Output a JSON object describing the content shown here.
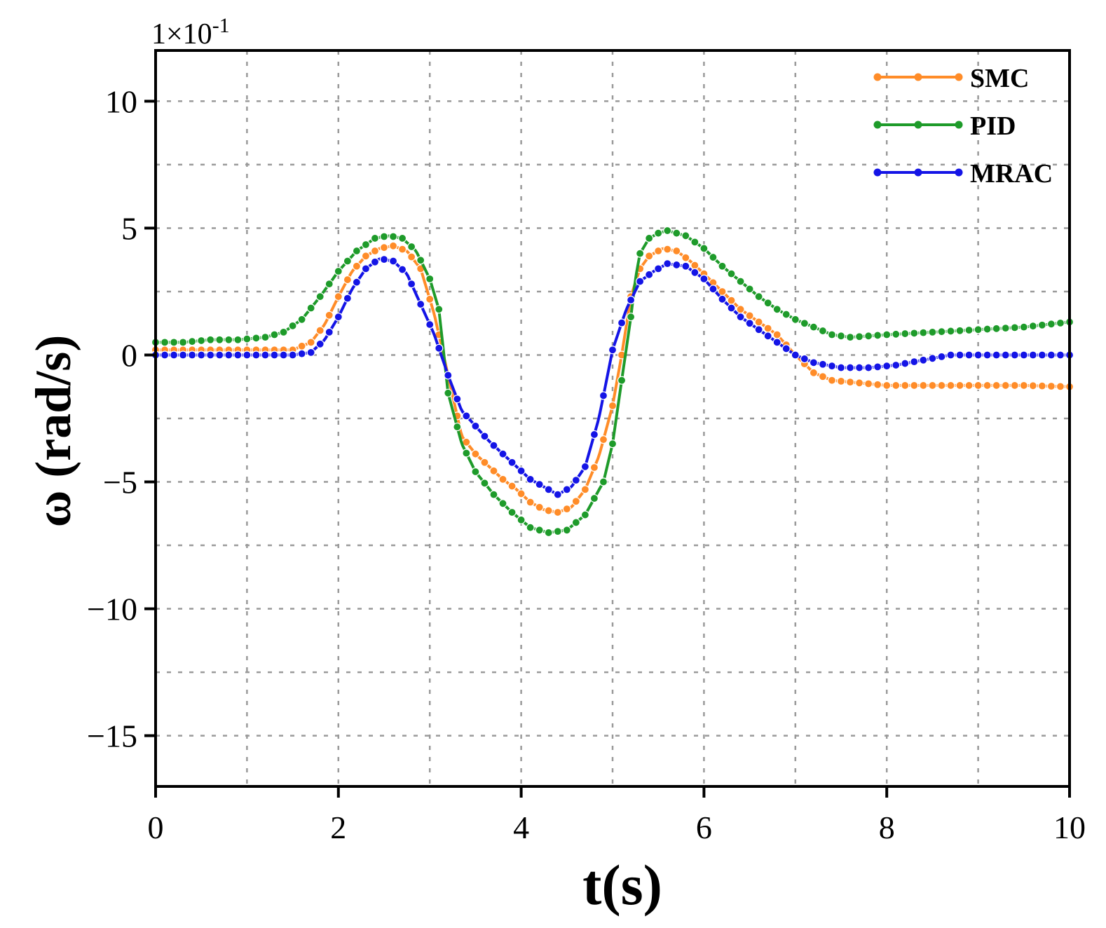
{
  "chart_data": {
    "type": "line",
    "title": "",
    "xlabel": "t(s)",
    "ylabel": "ω (rad/s)",
    "y_multiplier": {
      "base": "1×10",
      "exponent": "-1"
    },
    "xlim": [
      0,
      10
    ],
    "ylim": [
      -17,
      12
    ],
    "x_ticks": [
      0,
      2,
      4,
      6,
      8,
      10
    ],
    "x_tick_labels": [
      "0",
      "2",
      "4",
      "6",
      "8",
      "10"
    ],
    "y_ticks": [
      10,
      5,
      0,
      -5,
      -10,
      -15
    ],
    "y_tick_labels": [
      "10",
      "5",
      "0",
      "−5",
      "−10",
      "−15"
    ],
    "x_grid": [
      1,
      2,
      3,
      4,
      5,
      6,
      7,
      8,
      9
    ],
    "y_grid": [
      10,
      7.5,
      5,
      2.5,
      0,
      -2.5,
      -5,
      -7.5,
      -10,
      -12.5,
      -15
    ],
    "grid": true,
    "legend_position": "top-right",
    "series": [
      {
        "name": "SMC",
        "color": "#FF8C28",
        "x": [
          0,
          0.3,
          0.6,
          0.9,
          1.2,
          1.5,
          1.7,
          1.85,
          2.0,
          2.15,
          2.3,
          2.45,
          2.6,
          2.75,
          2.9,
          3.05,
          3.2,
          3.35,
          3.5,
          3.65,
          3.8,
          3.95,
          4.1,
          4.25,
          4.4,
          4.55,
          4.7,
          4.85,
          5.0,
          5.1,
          5.2,
          5.3,
          5.4,
          5.55,
          5.7,
          5.85,
          6.0,
          6.2,
          6.4,
          6.6,
          6.8,
          7.0,
          7.2,
          7.4,
          7.7,
          8.0,
          8.3,
          8.6,
          8.9,
          9.2,
          9.5,
          10
        ],
        "y": [
          0.2,
          0.2,
          0.2,
          0.2,
          0.2,
          0.2,
          0.5,
          1.2,
          2.3,
          3.3,
          3.9,
          4.2,
          4.3,
          4.1,
          3.4,
          1.6,
          -0.8,
          -3.2,
          -3.9,
          -4.4,
          -4.9,
          -5.3,
          -5.8,
          -6.1,
          -6.2,
          -6.0,
          -5.3,
          -4.0,
          -2.0,
          0.0,
          2.3,
          3.4,
          3.9,
          4.2,
          4.1,
          3.7,
          3.2,
          2.5,
          1.8,
          1.3,
          0.8,
          0.0,
          -0.7,
          -1.0,
          -1.1,
          -1.2,
          -1.2,
          -1.2,
          -1.2,
          -1.2,
          -1.2,
          -1.25
        ]
      },
      {
        "name": "PID",
        "color": "#1E9B2A",
        "x": [
          0,
          0.3,
          0.6,
          0.9,
          1.2,
          1.4,
          1.6,
          1.8,
          2.0,
          2.2,
          2.4,
          2.55,
          2.7,
          2.85,
          3.0,
          3.1,
          3.2,
          3.35,
          3.5,
          3.7,
          3.9,
          4.1,
          4.3,
          4.5,
          4.7,
          4.9,
          5.0,
          5.1,
          5.2,
          5.25,
          5.3,
          5.4,
          5.5,
          5.6,
          5.8,
          6.0,
          6.2,
          6.4,
          6.6,
          6.8,
          7.0,
          7.2,
          7.4,
          7.6,
          8.0,
          8.5,
          9.0,
          9.5,
          10
        ],
        "y": [
          0.5,
          0.5,
          0.6,
          0.6,
          0.7,
          0.9,
          1.4,
          2.3,
          3.3,
          4.1,
          4.6,
          4.7,
          4.6,
          4.1,
          3.0,
          1.8,
          -1.5,
          -3.5,
          -4.6,
          -5.5,
          -6.2,
          -6.8,
          -7.0,
          -6.9,
          -6.3,
          -5.0,
          -3.5,
          -1.0,
          1.5,
          3.0,
          4.0,
          4.6,
          4.8,
          4.9,
          4.7,
          4.2,
          3.5,
          2.9,
          2.3,
          1.8,
          1.4,
          1.1,
          0.8,
          0.7,
          0.8,
          0.9,
          1.0,
          1.1,
          1.3
        ]
      },
      {
        "name": "MRAC",
        "color": "#1414E6",
        "x": [
          0,
          0.3,
          0.6,
          0.9,
          1.2,
          1.5,
          1.7,
          1.85,
          2.0,
          2.15,
          2.3,
          2.45,
          2.6,
          2.75,
          2.9,
          3.05,
          3.2,
          3.35,
          3.5,
          3.65,
          3.8,
          3.95,
          4.1,
          4.25,
          4.4,
          4.55,
          4.7,
          4.85,
          5.0,
          5.15,
          5.3,
          5.45,
          5.6,
          5.8,
          6.0,
          6.2,
          6.4,
          6.6,
          6.8,
          7.0,
          7.2,
          7.5,
          7.8,
          8.1,
          8.4,
          8.7,
          9.0,
          9.3,
          10
        ],
        "y": [
          0,
          0,
          0,
          0,
          0,
          0,
          0.1,
          0.6,
          1.5,
          2.6,
          3.4,
          3.8,
          3.7,
          3.2,
          2.0,
          0.8,
          -0.8,
          -2.2,
          -2.8,
          -3.4,
          -3.9,
          -4.4,
          -4.9,
          -5.2,
          -5.5,
          -5.2,
          -4.4,
          -2.5,
          0.2,
          1.8,
          2.9,
          3.3,
          3.6,
          3.5,
          3.0,
          2.2,
          1.5,
          1.0,
          0.5,
          0.0,
          -0.3,
          -0.5,
          -0.5,
          -0.4,
          -0.2,
          0.0,
          0.0,
          0.0,
          0.0
        ]
      }
    ]
  }
}
